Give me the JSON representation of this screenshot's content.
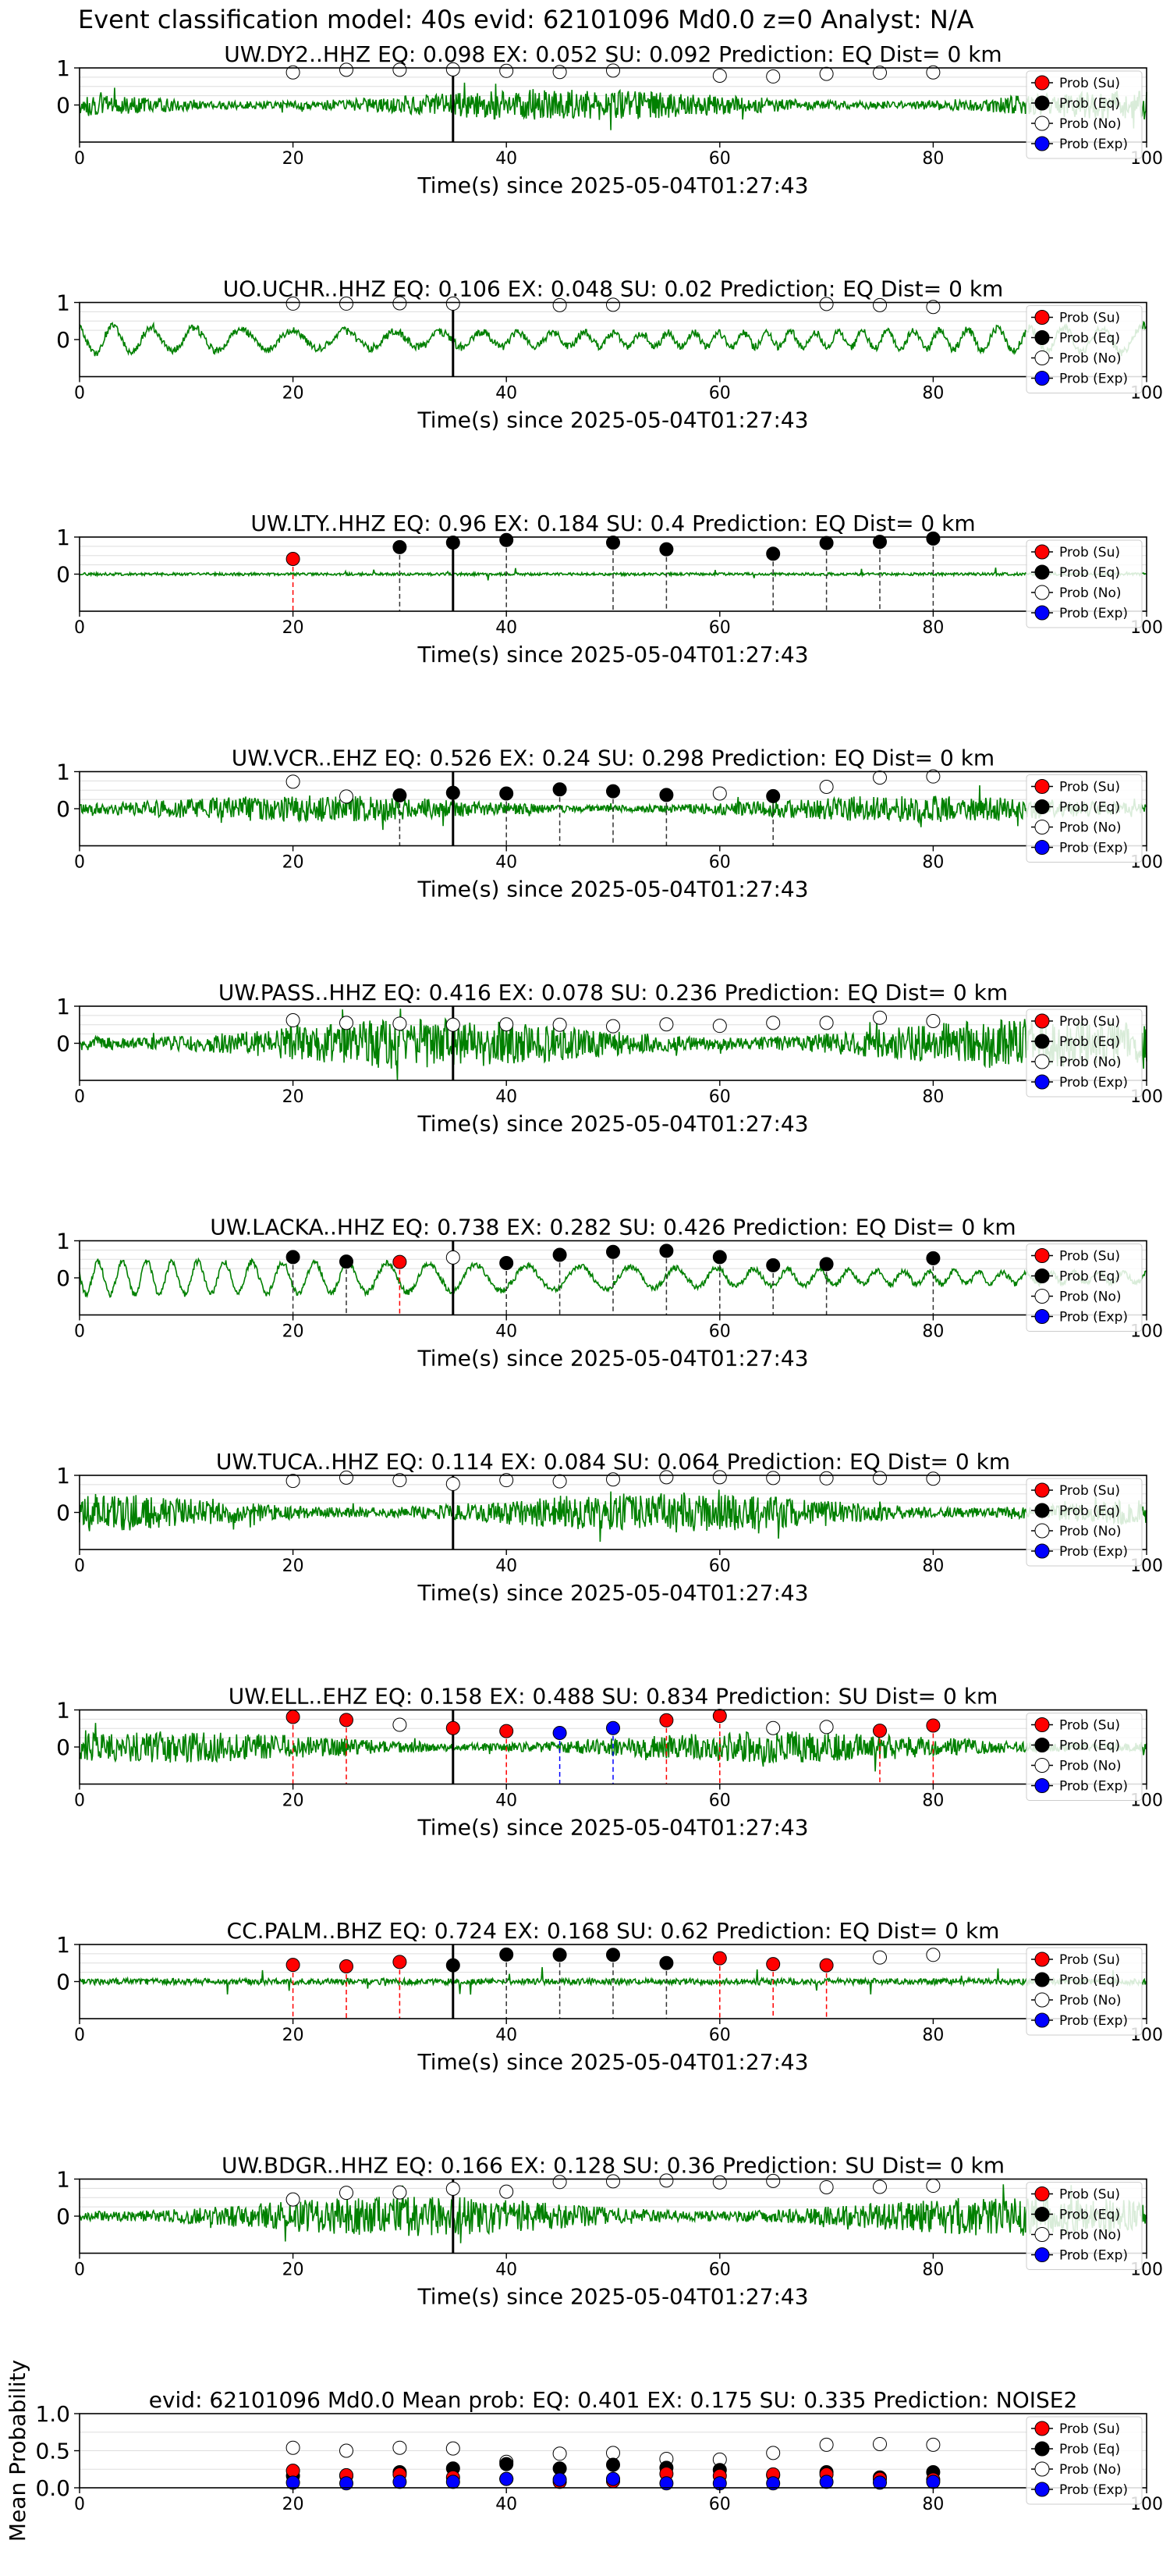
{
  "figure": {
    "title": "Event classification model: 40s evid: 62101096 Md0.0 z=0 Analyst: N/A"
  },
  "legend_labels": [
    "Prob (Su)",
    "Prob (Eq)",
    "Prob (No)",
    "Prob (Exp)"
  ],
  "colors": {
    "su": "#ff0000",
    "eq": "#000000",
    "no": "#ffffff",
    "exp": "#0000ff",
    "waveform": "#008000",
    "pick_line": "#000000",
    "grid": "#dddddd"
  },
  "chart_data": [
    {
      "type": "line",
      "title": "UW.DY2..HHZ   EQ: 0.098  EX: 0.052  SU: 0.092   Prediction: EQ    Dist= 0 km",
      "xlabel": "Time(s) since 2025-05-04T01:27:43",
      "xlim": [
        0,
        100
      ],
      "ylim": [
        -1,
        1
      ],
      "xticks": [
        0,
        20,
        40,
        60,
        80,
        100
      ],
      "yticks": [
        0,
        1
      ],
      "pick_time": 35,
      "legend": "top-right",
      "waveform": {
        "character": "noise",
        "amplitude": 0.35
      },
      "windows": [
        {
          "t": 20,
          "cls": "no",
          "p": 0.88
        },
        {
          "t": 25,
          "cls": "no",
          "p": 0.95
        },
        {
          "t": 30,
          "cls": "no",
          "p": 0.95
        },
        {
          "t": 35,
          "cls": "no",
          "p": 0.96
        },
        {
          "t": 40,
          "cls": "no",
          "p": 0.92
        },
        {
          "t": 45,
          "cls": "no",
          "p": 0.89
        },
        {
          "t": 50,
          "cls": "no",
          "p": 0.93
        },
        {
          "t": 60,
          "cls": "no",
          "p": 0.79
        },
        {
          "t": 65,
          "cls": "no",
          "p": 0.77
        },
        {
          "t": 70,
          "cls": "no",
          "p": 0.84
        },
        {
          "t": 75,
          "cls": "no",
          "p": 0.87
        },
        {
          "t": 80,
          "cls": "no",
          "p": 0.88
        }
      ]
    },
    {
      "type": "line",
      "title": "UO.UCHR..HHZ   EQ: 0.106  EX: 0.048  SU: 0.02   Prediction: EQ    Dist= 0 km",
      "xlabel": "Time(s) since 2025-05-04T01:27:43",
      "xlim": [
        0,
        100
      ],
      "ylim": [
        -1,
        1
      ],
      "xticks": [
        0,
        20,
        40,
        60,
        80,
        100
      ],
      "yticks": [
        0,
        1
      ],
      "pick_time": 35,
      "legend": "top-right",
      "waveform": {
        "character": "oscillation",
        "amplitude": 0.6
      },
      "windows": [
        {
          "t": 20,
          "cls": "no",
          "p": 0.97
        },
        {
          "t": 25,
          "cls": "no",
          "p": 0.97
        },
        {
          "t": 30,
          "cls": "no",
          "p": 0.98
        },
        {
          "t": 35,
          "cls": "no",
          "p": 0.97
        },
        {
          "t": 45,
          "cls": "no",
          "p": 0.93
        },
        {
          "t": 50,
          "cls": "no",
          "p": 0.94
        },
        {
          "t": 70,
          "cls": "no",
          "p": 0.96
        },
        {
          "t": 75,
          "cls": "no",
          "p": 0.93
        },
        {
          "t": 80,
          "cls": "no",
          "p": 0.88
        }
      ]
    },
    {
      "type": "line",
      "title": "UW.LTY..HHZ   EQ: 0.96  EX: 0.184  SU: 0.4   Prediction: EQ    Dist= 0 km",
      "xlabel": "Time(s) since 2025-05-04T01:27:43",
      "xlim": [
        0,
        100
      ],
      "ylim": [
        -1,
        1
      ],
      "xticks": [
        0,
        20,
        40,
        60,
        80,
        100
      ],
      "yticks": [
        0,
        1
      ],
      "pick_time": 35,
      "legend": "top-right",
      "waveform": {
        "character": "quiet",
        "amplitude": 0.06
      },
      "windows": [
        {
          "t": 20,
          "cls": "su",
          "p": 0.41
        },
        {
          "t": 30,
          "cls": "eq",
          "p": 0.73
        },
        {
          "t": 35,
          "cls": "eq",
          "p": 0.85
        },
        {
          "t": 40,
          "cls": "eq",
          "p": 0.92
        },
        {
          "t": 50,
          "cls": "eq",
          "p": 0.85
        },
        {
          "t": 55,
          "cls": "eq",
          "p": 0.67
        },
        {
          "t": 65,
          "cls": "eq",
          "p": 0.55
        },
        {
          "t": 70,
          "cls": "eq",
          "p": 0.84
        },
        {
          "t": 75,
          "cls": "eq",
          "p": 0.87
        },
        {
          "t": 80,
          "cls": "eq",
          "p": 0.96
        }
      ]
    },
    {
      "type": "line",
      "title": "UW.VCR..EHZ   EQ: 0.526  EX: 0.24  SU: 0.298   Prediction: EQ    Dist= 0 km",
      "xlabel": "Time(s) since 2025-05-04T01:27:43",
      "xlim": [
        0,
        100
      ],
      "ylim": [
        -1,
        1
      ],
      "xticks": [
        0,
        20,
        40,
        60,
        80,
        100
      ],
      "yticks": [
        0,
        1
      ],
      "pick_time": 35,
      "legend": "top-right",
      "waveform": {
        "character": "noise",
        "amplitude": 0.3
      },
      "windows": [
        {
          "t": 20,
          "cls": "no",
          "p": 0.73
        },
        {
          "t": 25,
          "cls": "no",
          "p": 0.33
        },
        {
          "t": 30,
          "cls": "eq",
          "p": 0.36
        },
        {
          "t": 35,
          "cls": "eq",
          "p": 0.43
        },
        {
          "t": 40,
          "cls": "eq",
          "p": 0.41
        },
        {
          "t": 45,
          "cls": "eq",
          "p": 0.52
        },
        {
          "t": 50,
          "cls": "eq",
          "p": 0.47
        },
        {
          "t": 55,
          "cls": "eq",
          "p": 0.37
        },
        {
          "t": 60,
          "cls": "no",
          "p": 0.41
        },
        {
          "t": 65,
          "cls": "eq",
          "p": 0.34
        },
        {
          "t": 70,
          "cls": "no",
          "p": 0.59
        },
        {
          "t": 75,
          "cls": "no",
          "p": 0.84
        },
        {
          "t": 80,
          "cls": "no",
          "p": 0.87
        }
      ]
    },
    {
      "type": "line",
      "title": "UW.PASS..HHZ   EQ: 0.416  EX: 0.078  SU: 0.236   Prediction: EQ    Dist= 0 km",
      "xlabel": "Time(s) since 2025-05-04T01:27:43",
      "xlim": [
        0,
        100
      ],
      "ylim": [
        -1,
        1
      ],
      "xticks": [
        0,
        20,
        40,
        60,
        80,
        100
      ],
      "yticks": [
        0,
        1
      ],
      "pick_time": 35,
      "legend": "top-right",
      "waveform": {
        "character": "noise",
        "amplitude": 0.55
      },
      "windows": [
        {
          "t": 20,
          "cls": "no",
          "p": 0.62
        },
        {
          "t": 25,
          "cls": "no",
          "p": 0.55
        },
        {
          "t": 30,
          "cls": "no",
          "p": 0.53
        },
        {
          "t": 35,
          "cls": "no",
          "p": 0.5
        },
        {
          "t": 40,
          "cls": "no",
          "p": 0.51
        },
        {
          "t": 45,
          "cls": "no",
          "p": 0.5
        },
        {
          "t": 50,
          "cls": "no",
          "p": 0.46
        },
        {
          "t": 55,
          "cls": "no",
          "p": 0.51
        },
        {
          "t": 60,
          "cls": "no",
          "p": 0.47
        },
        {
          "t": 65,
          "cls": "no",
          "p": 0.55
        },
        {
          "t": 70,
          "cls": "no",
          "p": 0.55
        },
        {
          "t": 75,
          "cls": "no",
          "p": 0.69
        },
        {
          "t": 80,
          "cls": "no",
          "p": 0.6
        }
      ]
    },
    {
      "type": "line",
      "title": "UW.LACKA..HHZ   EQ: 0.738  EX: 0.282  SU: 0.426   Prediction: EQ    Dist= 0 km",
      "xlabel": "Time(s) since 2025-05-04T01:27:43",
      "xlim": [
        0,
        100
      ],
      "ylim": [
        -1,
        1
      ],
      "xticks": [
        0,
        20,
        40,
        60,
        80,
        100
      ],
      "yticks": [
        0,
        1
      ],
      "pick_time": 35,
      "legend": "top-right",
      "waveform": {
        "character": "oscillation",
        "amplitude": 0.45
      },
      "windows": [
        {
          "t": 20,
          "cls": "eq",
          "p": 0.56
        },
        {
          "t": 25,
          "cls": "eq",
          "p": 0.44
        },
        {
          "t": 30,
          "cls": "su",
          "p": 0.43
        },
        {
          "t": 35,
          "cls": "no",
          "p": 0.55
        },
        {
          "t": 40,
          "cls": "eq",
          "p": 0.4
        },
        {
          "t": 45,
          "cls": "eq",
          "p": 0.62
        },
        {
          "t": 50,
          "cls": "eq",
          "p": 0.7
        },
        {
          "t": 55,
          "cls": "eq",
          "p": 0.73
        },
        {
          "t": 60,
          "cls": "eq",
          "p": 0.56
        },
        {
          "t": 65,
          "cls": "eq",
          "p": 0.34
        },
        {
          "t": 70,
          "cls": "eq",
          "p": 0.37
        },
        {
          "t": 80,
          "cls": "eq",
          "p": 0.53
        }
      ]
    },
    {
      "type": "line",
      "title": "UW.TUCA..HHZ   EQ: 0.114  EX: 0.084  SU: 0.064   Prediction: EQ    Dist= 0 km",
      "xlabel": "Time(s) since 2025-05-04T01:27:43",
      "xlim": [
        0,
        100
      ],
      "ylim": [
        -1,
        1
      ],
      "xticks": [
        0,
        20,
        40,
        60,
        80,
        100
      ],
      "yticks": [
        0,
        1
      ],
      "pick_time": 35,
      "legend": "top-right",
      "waveform": {
        "character": "noise",
        "amplitude": 0.45
      },
      "windows": [
        {
          "t": 20,
          "cls": "no",
          "p": 0.85
        },
        {
          "t": 25,
          "cls": "no",
          "p": 0.94
        },
        {
          "t": 30,
          "cls": "no",
          "p": 0.87
        },
        {
          "t": 35,
          "cls": "no",
          "p": 0.77
        },
        {
          "t": 40,
          "cls": "no",
          "p": 0.87
        },
        {
          "t": 45,
          "cls": "no",
          "p": 0.84
        },
        {
          "t": 50,
          "cls": "no",
          "p": 0.89
        },
        {
          "t": 55,
          "cls": "no",
          "p": 0.95
        },
        {
          "t": 60,
          "cls": "no",
          "p": 0.95
        },
        {
          "t": 65,
          "cls": "no",
          "p": 0.93
        },
        {
          "t": 70,
          "cls": "no",
          "p": 0.92
        },
        {
          "t": 75,
          "cls": "no",
          "p": 0.93
        },
        {
          "t": 80,
          "cls": "no",
          "p": 0.91
        }
      ]
    },
    {
      "type": "line",
      "title": "UW.ELL..EHZ   EQ: 0.158  EX: 0.488  SU: 0.834   Prediction: SU    Dist= 0 km",
      "xlabel": "Time(s) since 2025-05-04T01:27:43",
      "xlim": [
        0,
        100
      ],
      "ylim": [
        -1,
        1
      ],
      "xticks": [
        0,
        20,
        40,
        60,
        80,
        100
      ],
      "yticks": [
        0,
        1
      ],
      "pick_time": 35,
      "legend": "top-right",
      "waveform": {
        "character": "noise",
        "amplitude": 0.35
      },
      "windows": [
        {
          "t": 20,
          "cls": "su",
          "p": 0.81
        },
        {
          "t": 25,
          "cls": "su",
          "p": 0.73
        },
        {
          "t": 30,
          "cls": "no",
          "p": 0.6
        },
        {
          "t": 35,
          "cls": "su",
          "p": 0.51
        },
        {
          "t": 40,
          "cls": "su",
          "p": 0.43
        },
        {
          "t": 45,
          "cls": "exp",
          "p": 0.38
        },
        {
          "t": 50,
          "cls": "exp",
          "p": 0.51
        },
        {
          "t": 55,
          "cls": "su",
          "p": 0.72
        },
        {
          "t": 60,
          "cls": "su",
          "p": 0.84
        },
        {
          "t": 65,
          "cls": "no",
          "p": 0.51
        },
        {
          "t": 70,
          "cls": "no",
          "p": 0.54
        },
        {
          "t": 75,
          "cls": "su",
          "p": 0.44
        },
        {
          "t": 80,
          "cls": "su",
          "p": 0.58
        }
      ]
    },
    {
      "type": "line",
      "title": "CC.PALM..BHZ   EQ: 0.724  EX: 0.168  SU: 0.62   Prediction: EQ    Dist= 0 km",
      "xlabel": "Time(s) since 2025-05-04T01:27:43",
      "xlim": [
        0,
        100
      ],
      "ylim": [
        -1,
        1
      ],
      "xticks": [
        0,
        20,
        40,
        60,
        80,
        100
      ],
      "yticks": [
        0,
        1
      ],
      "pick_time": 35,
      "legend": "top-right",
      "waveform": {
        "character": "quiet",
        "amplitude": 0.14
      },
      "windows": [
        {
          "t": 20,
          "cls": "su",
          "p": 0.45
        },
        {
          "t": 25,
          "cls": "su",
          "p": 0.41
        },
        {
          "t": 30,
          "cls": "su",
          "p": 0.53
        },
        {
          "t": 35,
          "cls": "eq",
          "p": 0.44
        },
        {
          "t": 40,
          "cls": "eq",
          "p": 0.73
        },
        {
          "t": 45,
          "cls": "eq",
          "p": 0.72
        },
        {
          "t": 50,
          "cls": "eq",
          "p": 0.72
        },
        {
          "t": 55,
          "cls": "eq",
          "p": 0.5
        },
        {
          "t": 60,
          "cls": "su",
          "p": 0.63
        },
        {
          "t": 65,
          "cls": "su",
          "p": 0.47
        },
        {
          "t": 70,
          "cls": "su",
          "p": 0.44
        },
        {
          "t": 75,
          "cls": "no",
          "p": 0.65
        },
        {
          "t": 80,
          "cls": "no",
          "p": 0.72
        }
      ]
    },
    {
      "type": "line",
      "title": "UW.BDGR..HHZ   EQ: 0.166  EX: 0.128  SU: 0.36   Prediction: SU    Dist= 0 km",
      "xlabel": "Time(s) since 2025-05-04T01:27:43",
      "xlim": [
        0,
        100
      ],
      "ylim": [
        -1,
        1
      ],
      "xticks": [
        0,
        20,
        40,
        60,
        80,
        100
      ],
      "yticks": [
        0,
        1
      ],
      "pick_time": 35,
      "legend": "top-right",
      "waveform": {
        "character": "noise",
        "amplitude": 0.45
      },
      "windows": [
        {
          "t": 20,
          "cls": "no",
          "p": 0.45
        },
        {
          "t": 25,
          "cls": "no",
          "p": 0.63
        },
        {
          "t": 30,
          "cls": "no",
          "p": 0.64
        },
        {
          "t": 35,
          "cls": "no",
          "p": 0.74
        },
        {
          "t": 40,
          "cls": "no",
          "p": 0.66
        },
        {
          "t": 45,
          "cls": "no",
          "p": 0.92
        },
        {
          "t": 50,
          "cls": "no",
          "p": 0.94
        },
        {
          "t": 55,
          "cls": "no",
          "p": 0.96
        },
        {
          "t": 60,
          "cls": "no",
          "p": 0.91
        },
        {
          "t": 65,
          "cls": "no",
          "p": 0.95
        },
        {
          "t": 70,
          "cls": "no",
          "p": 0.78
        },
        {
          "t": 75,
          "cls": "no",
          "p": 0.79
        },
        {
          "t": 80,
          "cls": "no",
          "p": 0.82
        }
      ]
    },
    {
      "type": "scatter",
      "title": "evid: 62101096  Md0.0   Mean prob:   EQ: 0.401  EX: 0.175  SU: 0.335   Prediction: NOISE2",
      "ylabel": "Mean Probability",
      "xlim": [
        0,
        100
      ],
      "ylim": [
        0,
        1
      ],
      "xticks": [
        0,
        20,
        40,
        60,
        80,
        100
      ],
      "yticks": [
        0.0,
        0.5,
        1.0
      ],
      "ytick_labels": [
        "0.0",
        "0.5",
        "1.0"
      ],
      "legend": "top-right",
      "x": [
        20,
        25,
        30,
        35,
        40,
        45,
        50,
        55,
        60,
        65,
        70,
        75,
        80
      ],
      "series": [
        {
          "name": "Prob (No)",
          "cls": "no",
          "values": [
            0.54,
            0.5,
            0.54,
            0.53,
            0.35,
            0.46,
            0.47,
            0.39,
            0.38,
            0.47,
            0.58,
            0.59,
            0.58
          ]
        },
        {
          "name": "Prob (Eq)",
          "cls": "eq",
          "values": [
            0.16,
            0.16,
            0.21,
            0.26,
            0.32,
            0.26,
            0.31,
            0.27,
            0.24,
            0.17,
            0.21,
            0.14,
            0.21
          ]
        },
        {
          "name": "Prob (Su)",
          "cls": "su",
          "values": [
            0.23,
            0.17,
            0.18,
            0.14,
            0.12,
            0.08,
            0.09,
            0.19,
            0.16,
            0.18,
            0.18,
            0.12,
            0.11
          ]
        },
        {
          "name": "Prob (Exp)",
          "cls": "exp",
          "values": [
            0.07,
            0.06,
            0.08,
            0.08,
            0.12,
            0.11,
            0.12,
            0.06,
            0.06,
            0.06,
            0.08,
            0.07,
            0.08
          ]
        }
      ]
    }
  ]
}
